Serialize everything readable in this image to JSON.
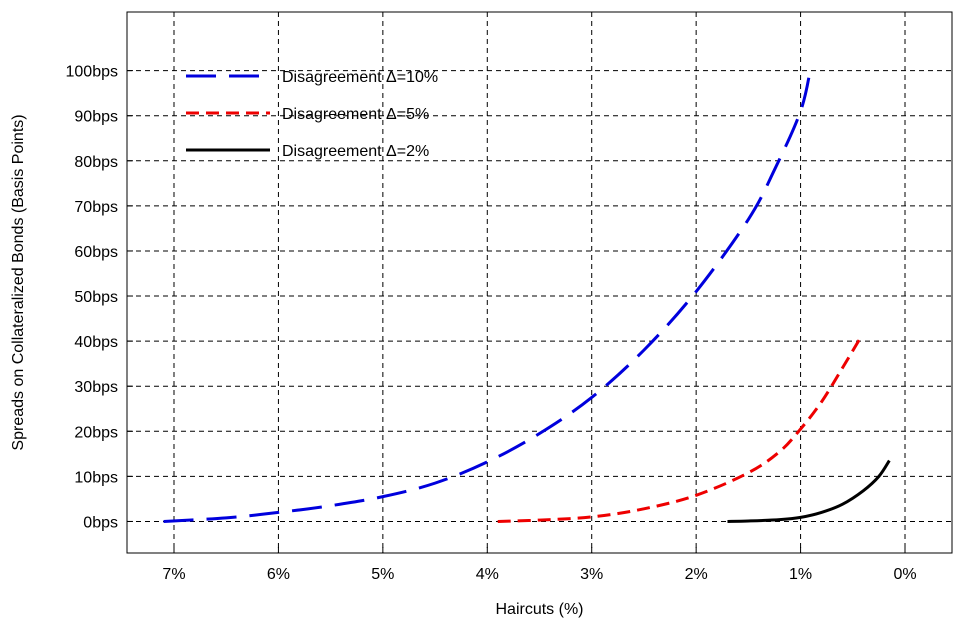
{
  "chart_data": {
    "type": "line",
    "xlabel": "Haircuts (%)",
    "ylabel": "Spreads on Collateralized Bonds (Basis Points)",
    "x_reversed": true,
    "xlim": [
      7.45,
      -0.45
    ],
    "ylim": [
      -7,
      113
    ],
    "x_ticks": [
      7,
      6,
      5,
      4,
      3,
      2,
      1,
      0
    ],
    "x_tick_labels": [
      "7%",
      "6%",
      "5%",
      "4%",
      "3%",
      "2%",
      "1%",
      "0%"
    ],
    "y_ticks": [
      0,
      10,
      20,
      30,
      40,
      50,
      60,
      70,
      80,
      90,
      100
    ],
    "y_tick_labels": [
      "0bps",
      "10bps",
      "20bps",
      "30bps",
      "40bps",
      "50bps",
      "60bps",
      "70bps",
      "80bps",
      "90bps",
      "100bps"
    ],
    "grid": true,
    "legend_position": "top-left",
    "series": [
      {
        "name": "Disagreement Δ=10%",
        "color": "#0000dd",
        "style": "long-dash",
        "x": [
          7.1,
          6.5,
          6.0,
          5.5,
          5.0,
          4.5,
          4.0,
          3.5,
          3.0,
          2.5,
          2.0,
          1.5,
          1.25,
          1.0,
          0.9
        ],
        "y": [
          0,
          0.8,
          2,
          3.5,
          5.5,
          8.5,
          13.2,
          19.5,
          27.5,
          38,
          51,
          67,
          78,
          91,
          101
        ]
      },
      {
        "name": "Disagreement Δ=5%",
        "color": "#ee0000",
        "style": "dash",
        "x": [
          3.9,
          3.5,
          3.0,
          2.5,
          2.0,
          1.5,
          1.2,
          1.0,
          0.8,
          0.6,
          0.42
        ],
        "y": [
          0,
          0.3,
          1.0,
          2.8,
          5.8,
          10.8,
          15.5,
          20.5,
          26.5,
          34,
          41
        ]
      },
      {
        "name": "Disagreement Δ=2%",
        "color": "#000000",
        "style": "solid",
        "x": [
          1.7,
          1.5,
          1.2,
          1.0,
          0.8,
          0.6,
          0.4,
          0.25,
          0.15
        ],
        "y": [
          0,
          0.1,
          0.4,
          0.9,
          2.0,
          3.8,
          6.8,
          10.0,
          13.5
        ]
      }
    ]
  }
}
